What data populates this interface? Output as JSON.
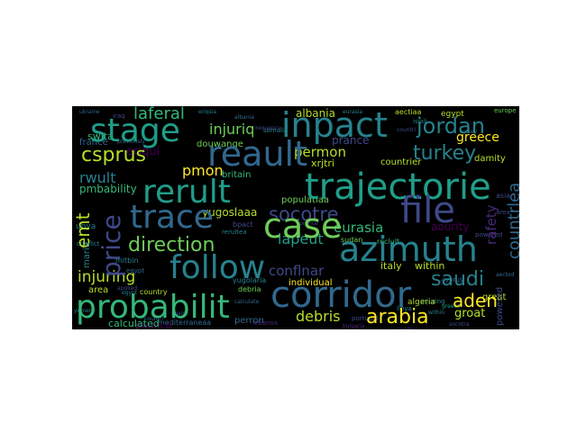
{
  "palette": {
    "background": "#000000",
    "yellow": "#fde725",
    "lime": "#b5de2b",
    "green": "#6ece58",
    "teal_green": "#35b779",
    "teal": "#1f9e89",
    "blue_teal": "#26828e",
    "blue": "#31688e",
    "indigo": "#3e4989",
    "purple": "#482878",
    "dark_purple": "#440154"
  },
  "words": {
    "probabilit": "probabilit",
    "corridor": "corridor",
    "follow": "follow",
    "azimuth": "azimuth",
    "file": "file",
    "trajectorie": "trajectorie",
    "reault": "reault",
    "stage": "stage",
    "inpact": "inpact",
    "rerult": "rerult",
    "trace": "trace",
    "case": "case",
    "jordan": "jordan",
    "price": "price",
    "turkey": "turkey",
    "csprus": "csprus",
    "socotre": "socotre",
    "direction": "direction",
    "arabia": "arabia",
    "saudi": "saudi",
    "aden": "aden",
    "injuring_top": "injuriq",
    "injuring_low": "injuring",
    "laferal": "laferal",
    "emt": "emt",
    "eurasia": "eurasia",
    "iapeut": "iapeut",
    "debris": "debris",
    "countrlea": "countrlea",
    "permon": "permon",
    "pmon": "pmon",
    "conflnar": "conflnar",
    "prance": "prance",
    "rwult": "rwult",
    "groat": "groat",
    "greece": "greece",
    "albania": "albania",
    "xrjtri": "xrjtri",
    "douwange": "douwange",
    "yugoslaaa": "yugoslaaa",
    "pmbability": "pmbability",
    "eriqui": "eriqui",
    "pauecd": "pauecd",
    "country_large": "countrier",
    "damity": "damity",
    "great": "great",
    "switz": "swita",
    "france": "france",
    "britain": "britain",
    "italy": "italy",
    "within": "within",
    "individual": "individual",
    "calculated": "calculated",
    "perron": "perron",
    "area": "area",
    "maria": "maria",
    "ubya": "ubya",
    "populatiaa": "populatiaa",
    "aourity": "aourity",
    "powered": "powered",
    "rafety": "rafety",
    "egypt": "egypt",
    "algeria": "algeria",
    "sudan": "sudan",
    "reclult": "reclult",
    "bpact": "bpact",
    "rerultea": "rerultea",
    "debria": "debria",
    "mitbin": "mitbin",
    "yugolaria": "yugolaria",
    "libya": "libya",
    "somalia": "somalia",
    "aectiaa": "aectiaa",
    "europe": "europe",
    "country_small": "country",
    "cyprus": "cyprus",
    "portugal": "portugal",
    "spain": "spain",
    "injuring_small": "injuring",
    "greece_small": "greece",
    "bulgaria": "bulgaria",
    "yemen": "yemen",
    "iraq": "iraq",
    "isiali": "isiali",
    "saudia": "saudia",
    "prance_small": "prance",
    "albania_small": "albania",
    "mediterranean": "mediterraneaa",
    "countri": "countri",
    "lebanoa": "lebanoa",
    "powered_small": "powered",
    "eriqsia": "eriqsia",
    "aected": "aected",
    "irequency": "irequency",
    "previously": "previously",
    "turkey_small": "turkey",
    "confluct": "conflict",
    "area_small": "area",
    "calculate": "calculate",
    "within_small": "within",
    "ukraine": "ukraine",
    "eurasia_small": "eurasia",
    "applied": "applied",
    "egypt_small": "egypt",
    "asia": "asia",
    "country_mini": "countri",
    "socotra": "socotra"
  }
}
